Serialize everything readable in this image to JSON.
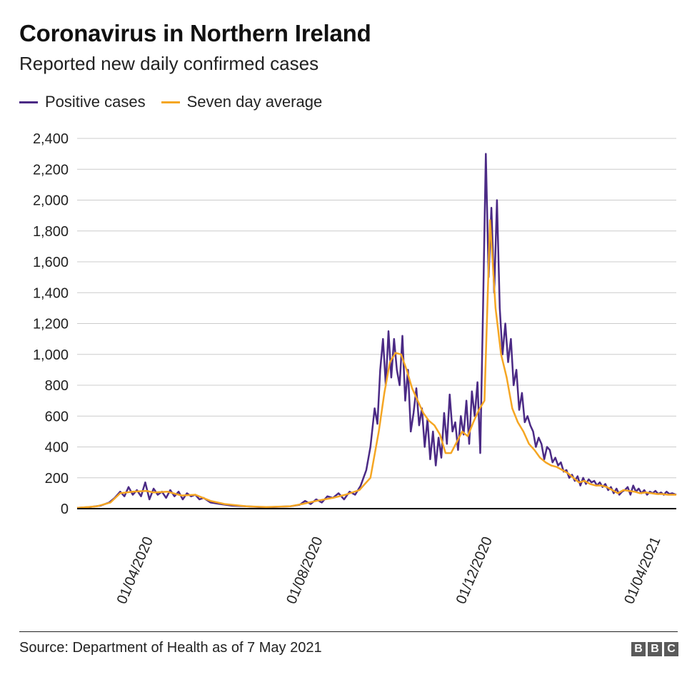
{
  "header": {
    "title": "Coronavirus in Northern Ireland",
    "subtitle": "Reported new daily confirmed cases"
  },
  "legend": [
    {
      "label": "Positive cases",
      "color": "#4b2a85"
    },
    {
      "label": "Seven day average",
      "color": "#f5a623"
    }
  ],
  "footer": {
    "source": "Source: Department of Health as of 7 May 2021",
    "logo": [
      "B",
      "B",
      "C"
    ]
  },
  "colors": {
    "positive": "#4b2a85",
    "average": "#f5a623",
    "grid": "#cccccc",
    "axis": "#000000"
  },
  "chart_data": {
    "type": "line",
    "title": "Coronavirus in Northern Ireland",
    "subtitle": "Reported new daily confirmed cases",
    "xlabel": "",
    "ylabel": "",
    "x_range": [
      "2020-03-01",
      "2021-05-06"
    ],
    "ylim": [
      0,
      2400
    ],
    "yticks": [
      0,
      200,
      400,
      600,
      800,
      1000,
      1200,
      1400,
      1600,
      1800,
      2000,
      2200,
      2400
    ],
    "ytick_labels": [
      "0",
      "200",
      "400",
      "600",
      "800",
      "1,000",
      "1,200",
      "1,400",
      "1,600",
      "1,800",
      "2,000",
      "2,200",
      "2,400"
    ],
    "xticks": [
      "2020-04-01",
      "2020-08-01",
      "2020-12-01",
      "2021-04-01"
    ],
    "xtick_labels": [
      "01/04/2020",
      "01/08/2020",
      "01/12/2020",
      "01/04/2021"
    ],
    "grid": true,
    "legend_position": "top-left",
    "series": [
      {
        "name": "Positive cases",
        "x": [
          "2020-03-01",
          "2020-03-10",
          "2020-03-18",
          "2020-03-24",
          "2020-03-28",
          "2020-04-01",
          "2020-04-04",
          "2020-04-07",
          "2020-04-10",
          "2020-04-13",
          "2020-04-16",
          "2020-04-19",
          "2020-04-22",
          "2020-04-25",
          "2020-04-28",
          "2020-05-01",
          "2020-05-04",
          "2020-05-07",
          "2020-05-10",
          "2020-05-13",
          "2020-05-16",
          "2020-05-19",
          "2020-05-22",
          "2020-05-25",
          "2020-05-28",
          "2020-05-31",
          "2020-06-05",
          "2020-06-12",
          "2020-06-20",
          "2020-07-01",
          "2020-07-10",
          "2020-07-20",
          "2020-08-01",
          "2020-08-08",
          "2020-08-12",
          "2020-08-16",
          "2020-08-20",
          "2020-08-24",
          "2020-08-28",
          "2020-09-01",
          "2020-09-05",
          "2020-09-09",
          "2020-09-13",
          "2020-09-17",
          "2020-09-21",
          "2020-09-25",
          "2020-09-28",
          "2020-10-01",
          "2020-10-03",
          "2020-10-05",
          "2020-10-07",
          "2020-10-09",
          "2020-10-11",
          "2020-10-13",
          "2020-10-15",
          "2020-10-17",
          "2020-10-19",
          "2020-10-21",
          "2020-10-23",
          "2020-10-25",
          "2020-10-27",
          "2020-10-29",
          "2020-10-31",
          "2020-11-02",
          "2020-11-04",
          "2020-11-06",
          "2020-11-08",
          "2020-11-10",
          "2020-11-12",
          "2020-11-14",
          "2020-11-16",
          "2020-11-18",
          "2020-11-20",
          "2020-11-22",
          "2020-11-24",
          "2020-11-26",
          "2020-11-28",
          "2020-11-30",
          "2020-12-02",
          "2020-12-04",
          "2020-12-06",
          "2020-12-08",
          "2020-12-10",
          "2020-12-12",
          "2020-12-14",
          "2020-12-16",
          "2020-12-18",
          "2020-12-20",
          "2020-12-22",
          "2020-12-24",
          "2020-12-26",
          "2020-12-28",
          "2020-12-30",
          "2021-01-01",
          "2021-01-03",
          "2021-01-05",
          "2021-01-07",
          "2021-01-09",
          "2021-01-11",
          "2021-01-13",
          "2021-01-15",
          "2021-01-17",
          "2021-01-19",
          "2021-01-21",
          "2021-01-23",
          "2021-01-25",
          "2021-01-27",
          "2021-01-29",
          "2021-01-31",
          "2021-02-02",
          "2021-02-04",
          "2021-02-06",
          "2021-02-08",
          "2021-02-10",
          "2021-02-12",
          "2021-02-14",
          "2021-02-16",
          "2021-02-18",
          "2021-02-20",
          "2021-02-22",
          "2021-02-24",
          "2021-02-26",
          "2021-02-28",
          "2021-03-02",
          "2021-03-04",
          "2021-03-06",
          "2021-03-08",
          "2021-03-10",
          "2021-03-12",
          "2021-03-14",
          "2021-03-16",
          "2021-03-18",
          "2021-03-20",
          "2021-03-22",
          "2021-03-24",
          "2021-03-26",
          "2021-03-28",
          "2021-03-30",
          "2021-04-01",
          "2021-04-03",
          "2021-04-05",
          "2021-04-07",
          "2021-04-09",
          "2021-04-11",
          "2021-04-13",
          "2021-04-15",
          "2021-04-17",
          "2021-04-19",
          "2021-04-21",
          "2021-04-23",
          "2021-04-25",
          "2021-04-27",
          "2021-04-29",
          "2021-05-01",
          "2021-05-03",
          "2021-05-06"
        ],
        "values": [
          5,
          10,
          20,
          40,
          70,
          110,
          80,
          140,
          90,
          120,
          80,
          170,
          60,
          130,
          90,
          110,
          70,
          120,
          80,
          110,
          60,
          100,
          80,
          90,
          60,
          70,
          40,
          30,
          20,
          15,
          10,
          10,
          15,
          25,
          50,
          30,
          60,
          40,
          80,
          70,
          100,
          60,
          110,
          90,
          150,
          250,
          400,
          650,
          550,
          900,
          1100,
          800,
          1150,
          850,
          1100,
          900,
          800,
          1120,
          700,
          900,
          500,
          620,
          780,
          540,
          650,
          400,
          580,
          320,
          500,
          280,
          460,
          330,
          620,
          420,
          740,
          500,
          560,
          380,
          600,
          480,
          700,
          420,
          760,
          600,
          820,
          360,
          1300,
          2300,
          1500,
          1950,
          1400,
          2000,
          1300,
          1000,
          1200,
          950,
          1100,
          800,
          900,
          640,
          750,
          560,
          600,
          540,
          500,
          400,
          460,
          420,
          320,
          400,
          380,
          300,
          330,
          280,
          300,
          240,
          250,
          200,
          220,
          180,
          210,
          150,
          200,
          160,
          190,
          170,
          180,
          150,
          170,
          140,
          160,
          120,
          140,
          100,
          130,
          90,
          110,
          120,
          140,
          90,
          150,
          110,
          130,
          100,
          120,
          90,
          110,
          100,
          115,
          95,
          105,
          90,
          110,
          95,
          100,
          90
        ]
      },
      {
        "name": "Seven day average",
        "x": [
          "2020-03-01",
          "2020-03-15",
          "2020-03-25",
          "2020-04-01",
          "2020-04-10",
          "2020-04-20",
          "2020-04-25",
          "2020-05-05",
          "2020-05-15",
          "2020-05-25",
          "2020-06-05",
          "2020-06-15",
          "2020-07-01",
          "2020-07-15",
          "2020-08-01",
          "2020-08-10",
          "2020-08-20",
          "2020-09-01",
          "2020-09-10",
          "2020-09-20",
          "2020-09-28",
          "2020-10-04",
          "2020-10-08",
          "2020-10-12",
          "2020-10-16",
          "2020-10-20",
          "2020-10-24",
          "2020-10-28",
          "2020-11-01",
          "2020-11-05",
          "2020-11-09",
          "2020-11-13",
          "2020-11-17",
          "2020-11-21",
          "2020-11-25",
          "2020-11-29",
          "2020-12-03",
          "2020-12-07",
          "2020-12-11",
          "2020-12-15",
          "2020-12-19",
          "2020-12-23",
          "2020-12-27",
          "2020-12-31",
          "2021-01-04",
          "2021-01-08",
          "2021-01-12",
          "2021-01-16",
          "2021-01-20",
          "2021-01-24",
          "2021-01-28",
          "2021-02-01",
          "2021-02-05",
          "2021-02-09",
          "2021-02-13",
          "2021-02-17",
          "2021-02-21",
          "2021-02-25",
          "2021-03-01",
          "2021-03-05",
          "2021-03-09",
          "2021-03-13",
          "2021-03-17",
          "2021-03-21",
          "2021-03-25",
          "2021-03-29",
          "2021-04-02",
          "2021-04-06",
          "2021-04-10",
          "2021-04-14",
          "2021-04-18",
          "2021-04-22",
          "2021-04-26",
          "2021-04-30",
          "2021-05-06"
        ],
        "values": [
          5,
          15,
          40,
          100,
          110,
          115,
          105,
          110,
          85,
          90,
          50,
          30,
          15,
          10,
          15,
          30,
          50,
          70,
          90,
          120,
          200,
          500,
          750,
          950,
          1010,
          1000,
          900,
          780,
          700,
          620,
          570,
          540,
          480,
          360,
          360,
          430,
          500,
          470,
          560,
          640,
          700,
          1870,
          1300,
          1000,
          850,
          650,
          560,
          500,
          420,
          380,
          330,
          300,
          280,
          270,
          250,
          230,
          200,
          170,
          180,
          160,
          150,
          150,
          140,
          120,
          100,
          120,
          115,
          110,
          100,
          105,
          100,
          95,
          95,
          90,
          90
        ]
      }
    ]
  }
}
